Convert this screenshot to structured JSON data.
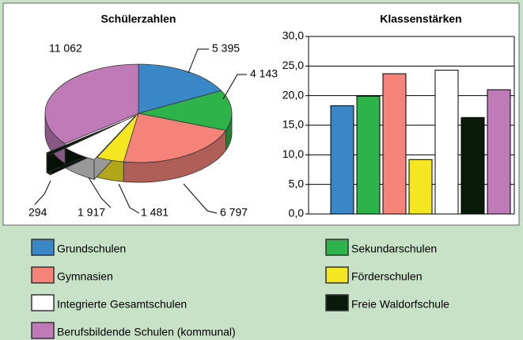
{
  "chart_data": [
    {
      "type": "pie3d",
      "title": "Schülerzahlen",
      "categories": [
        "Grundschulen",
        "Sekundarschulen",
        "Gymnasien",
        "Förderschulen",
        "Integrierte Gesamtschulen",
        "Freie Waldorfschule",
        "Berufsbildende Schulen (kommunal)"
      ],
      "values": [
        5395,
        4143,
        6797,
        1481,
        1917,
        294,
        11062
      ],
      "value_labels": [
        "5 395",
        "4 143",
        "6 797",
        "1 481",
        "1 917",
        "294",
        "11 062"
      ],
      "colors": [
        "#3a87c8",
        "#2db34a",
        "#f5837a",
        "#f5e622",
        "#ffffff",
        "#0a1a0a",
        "#c07ab8"
      ]
    },
    {
      "type": "bar",
      "title": "Klassenstärken",
      "values": [
        18.3,
        19.9,
        23.7,
        9.2,
        24.3,
        16.3,
        21.0
      ],
      "colors": [
        "#3a87c8",
        "#2db34a",
        "#f5837a",
        "#f5e622",
        "#ffffff",
        "#0a1a0a",
        "#c07ab8"
      ],
      "ylim": [
        0,
        30
      ],
      "yticks": [
        {
          "value": 0,
          "label": "0,0"
        },
        {
          "value": 5,
          "label": "5,0"
        },
        {
          "value": 10,
          "label": "10,0"
        },
        {
          "value": 15,
          "label": "15,0"
        },
        {
          "value": 20,
          "label": "20,0"
        },
        {
          "value": 25,
          "label": "25,0"
        },
        {
          "value": 30,
          "label": "30,0"
        }
      ],
      "grid": true
    }
  ]
}
